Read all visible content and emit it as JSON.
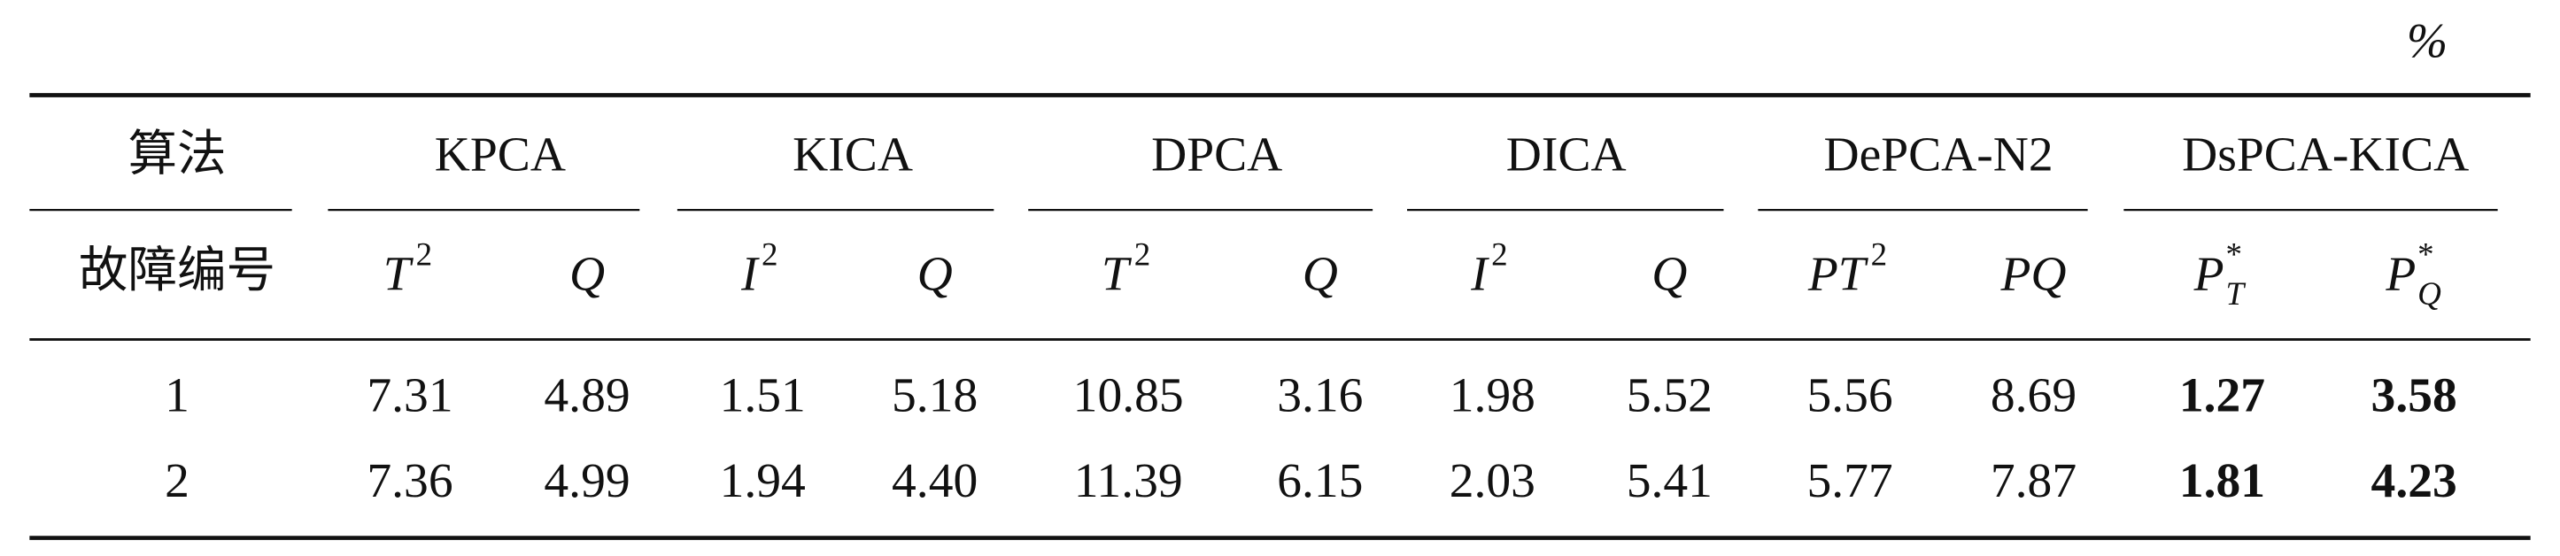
{
  "unit": "%",
  "header": {
    "row_label": "算法",
    "groups": [
      "KPCA",
      "KICA",
      "DPCA",
      "DICA",
      "DePCA-N2",
      "DsPCA-KICA"
    ]
  },
  "subheader": {
    "row_label": "故障编号",
    "columns": [
      {
        "base": "T",
        "sup": "2"
      },
      {
        "base": "Q"
      },
      {
        "base": "I",
        "sup": "2"
      },
      {
        "base": "Q"
      },
      {
        "base": "T",
        "sup": "2"
      },
      {
        "base": "Q"
      },
      {
        "base": "I",
        "sup": "2"
      },
      {
        "base": "Q"
      },
      {
        "base": "PT",
        "sup": "2"
      },
      {
        "base": "PQ"
      },
      {
        "base": "P",
        "sup": "*",
        "sub": "T"
      },
      {
        "base": "P",
        "sup": "*",
        "sub": "Q"
      }
    ]
  },
  "rows": [
    [
      "1",
      "7.31",
      "4.89",
      "1.51",
      "5.18",
      "10.85",
      "3.16",
      "1.98",
      "5.52",
      "5.56",
      "8.69",
      "1.27",
      "3.58"
    ],
    [
      "2",
      "7.36",
      "4.99",
      "1.94",
      "4.40",
      "11.39",
      "6.15",
      "2.03",
      "5.41",
      "5.77",
      "7.87",
      "1.81",
      "4.23"
    ]
  ]
}
